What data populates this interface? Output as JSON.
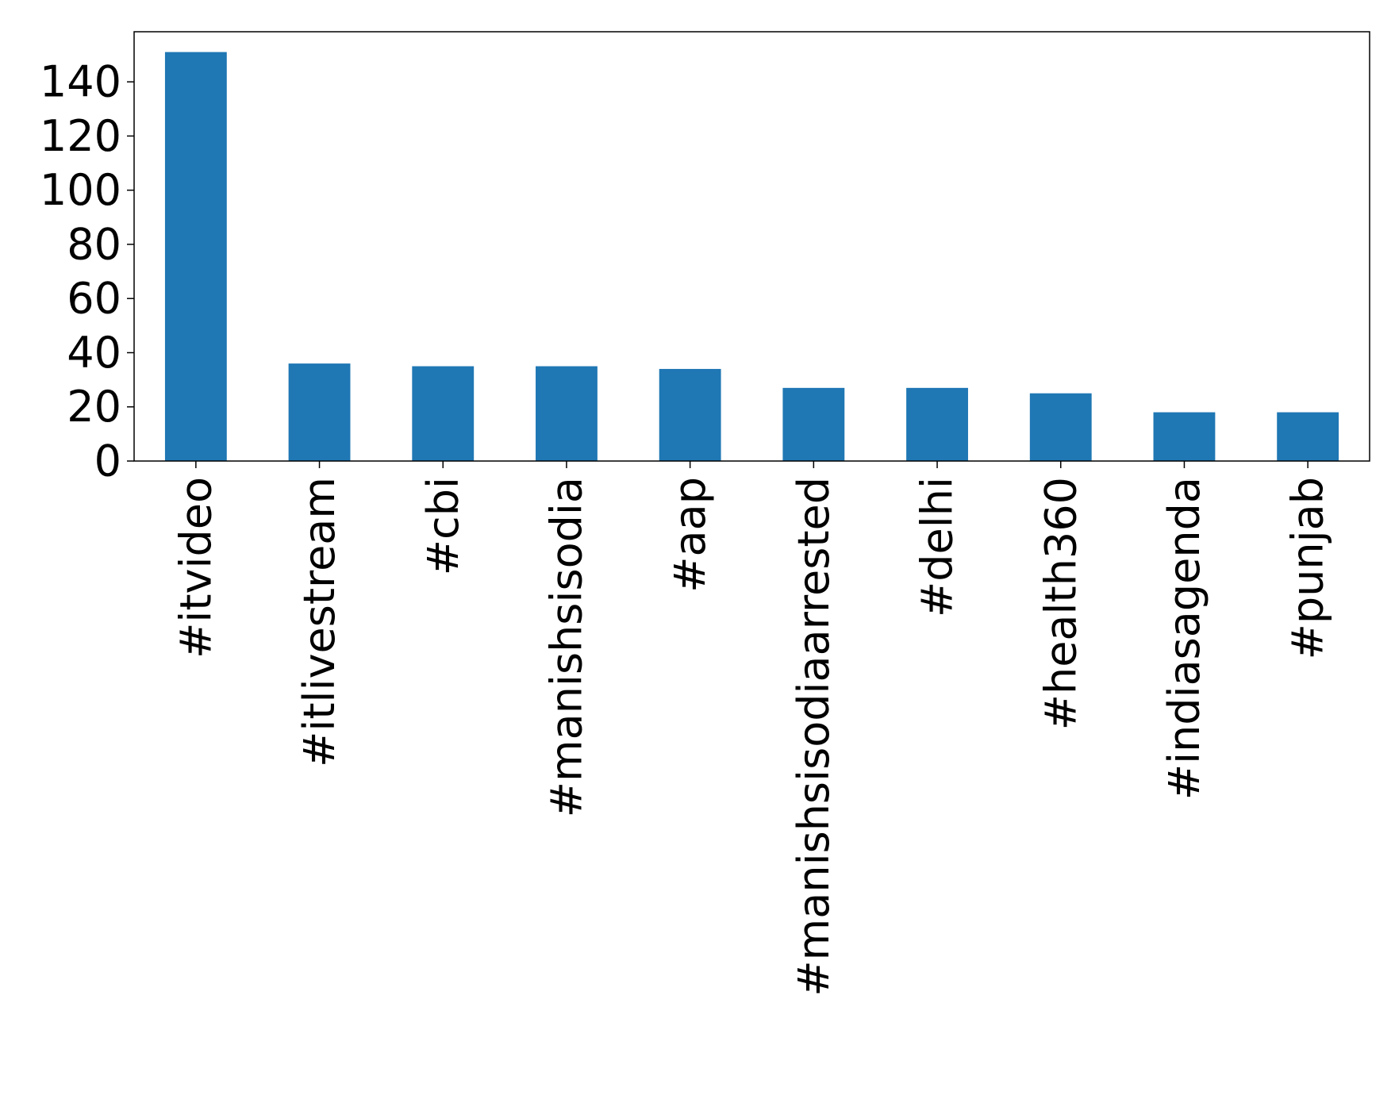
{
  "chart_data": {
    "type": "bar",
    "title": "",
    "xlabel": "",
    "ylabel": "",
    "categories": [
      "#itvideo",
      "#itlivestream",
      "#cbi",
      "#manishsisodia",
      "#aap",
      "#manishsisodiaarrested",
      "#delhi",
      "#health360",
      "#indiasagenda",
      "#punjab"
    ],
    "values": [
      151,
      36,
      35,
      35,
      34,
      27,
      27,
      25,
      18,
      18
    ],
    "ylim": [
      0,
      158.5
    ],
    "yticks": [
      0,
      20,
      40,
      60,
      80,
      100,
      120,
      140
    ],
    "bar_color": "#1f77b4",
    "grid": false,
    "legend": "none"
  }
}
